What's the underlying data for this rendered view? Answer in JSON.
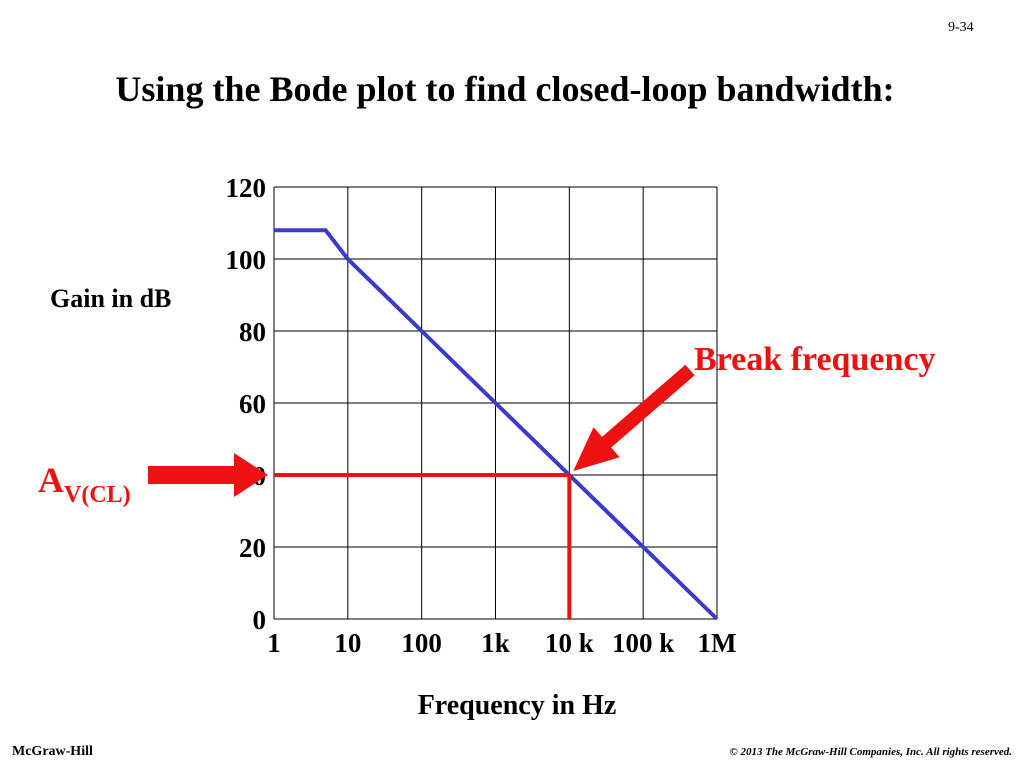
{
  "page_number": "9-34",
  "title": "Using the Bode plot to find closed-loop bandwidth:",
  "footer": {
    "left": "McGraw-Hill",
    "right": "© 2013 The McGraw-Hill Companies, Inc. All rights reserved."
  },
  "colors": {
    "curve": "#3a3acc",
    "annotation": "#ee1111",
    "grid": "#000000"
  },
  "chart_data": {
    "type": "line",
    "title": "Using the Bode plot to find closed-loop bandwidth:",
    "xlabel": "Frequency in Hz",
    "ylabel": "Gain in dB",
    "x_scale": "log",
    "xlim": [
      1,
      1000000
    ],
    "ylim": [
      0,
      120
    ],
    "grid": true,
    "x_ticks": [
      {
        "value": 1,
        "label": "1"
      },
      {
        "value": 10,
        "label": "10"
      },
      {
        "value": 100,
        "label": "100"
      },
      {
        "value": 1000,
        "label": "1k"
      },
      {
        "value": 10000,
        "label": "10 k"
      },
      {
        "value": 100000,
        "label": "100 k"
      },
      {
        "value": 1000000,
        "label": "1M"
      }
    ],
    "y_ticks": [
      {
        "value": 0,
        "label": "0"
      },
      {
        "value": 20,
        "label": "20"
      },
      {
        "value": 40,
        "label": "40"
      },
      {
        "value": 60,
        "label": "60"
      },
      {
        "value": 80,
        "label": "80"
      },
      {
        "value": 100,
        "label": "100"
      },
      {
        "value": 120,
        "label": "120"
      }
    ],
    "series": [
      {
        "color": "#3a3acc",
        "points": [
          {
            "x": 1,
            "y": 108
          },
          {
            "x": 5,
            "y": 108
          },
          {
            "x": 10,
            "y": 100
          },
          {
            "x": 100,
            "y": 80
          },
          {
            "x": 1000,
            "y": 60
          },
          {
            "x": 10000,
            "y": 40
          },
          {
            "x": 100000,
            "y": 20
          },
          {
            "x": 1000000,
            "y": 0
          }
        ]
      }
    ],
    "annotations": {
      "gain_line": {
        "y": 40,
        "x_end": 10000
      },
      "break_line": {
        "x": 10000,
        "y_top": 40
      },
      "break_label": "Break frequency",
      "gain_label_main": "A",
      "gain_label_sub": "V(CL)"
    }
  }
}
